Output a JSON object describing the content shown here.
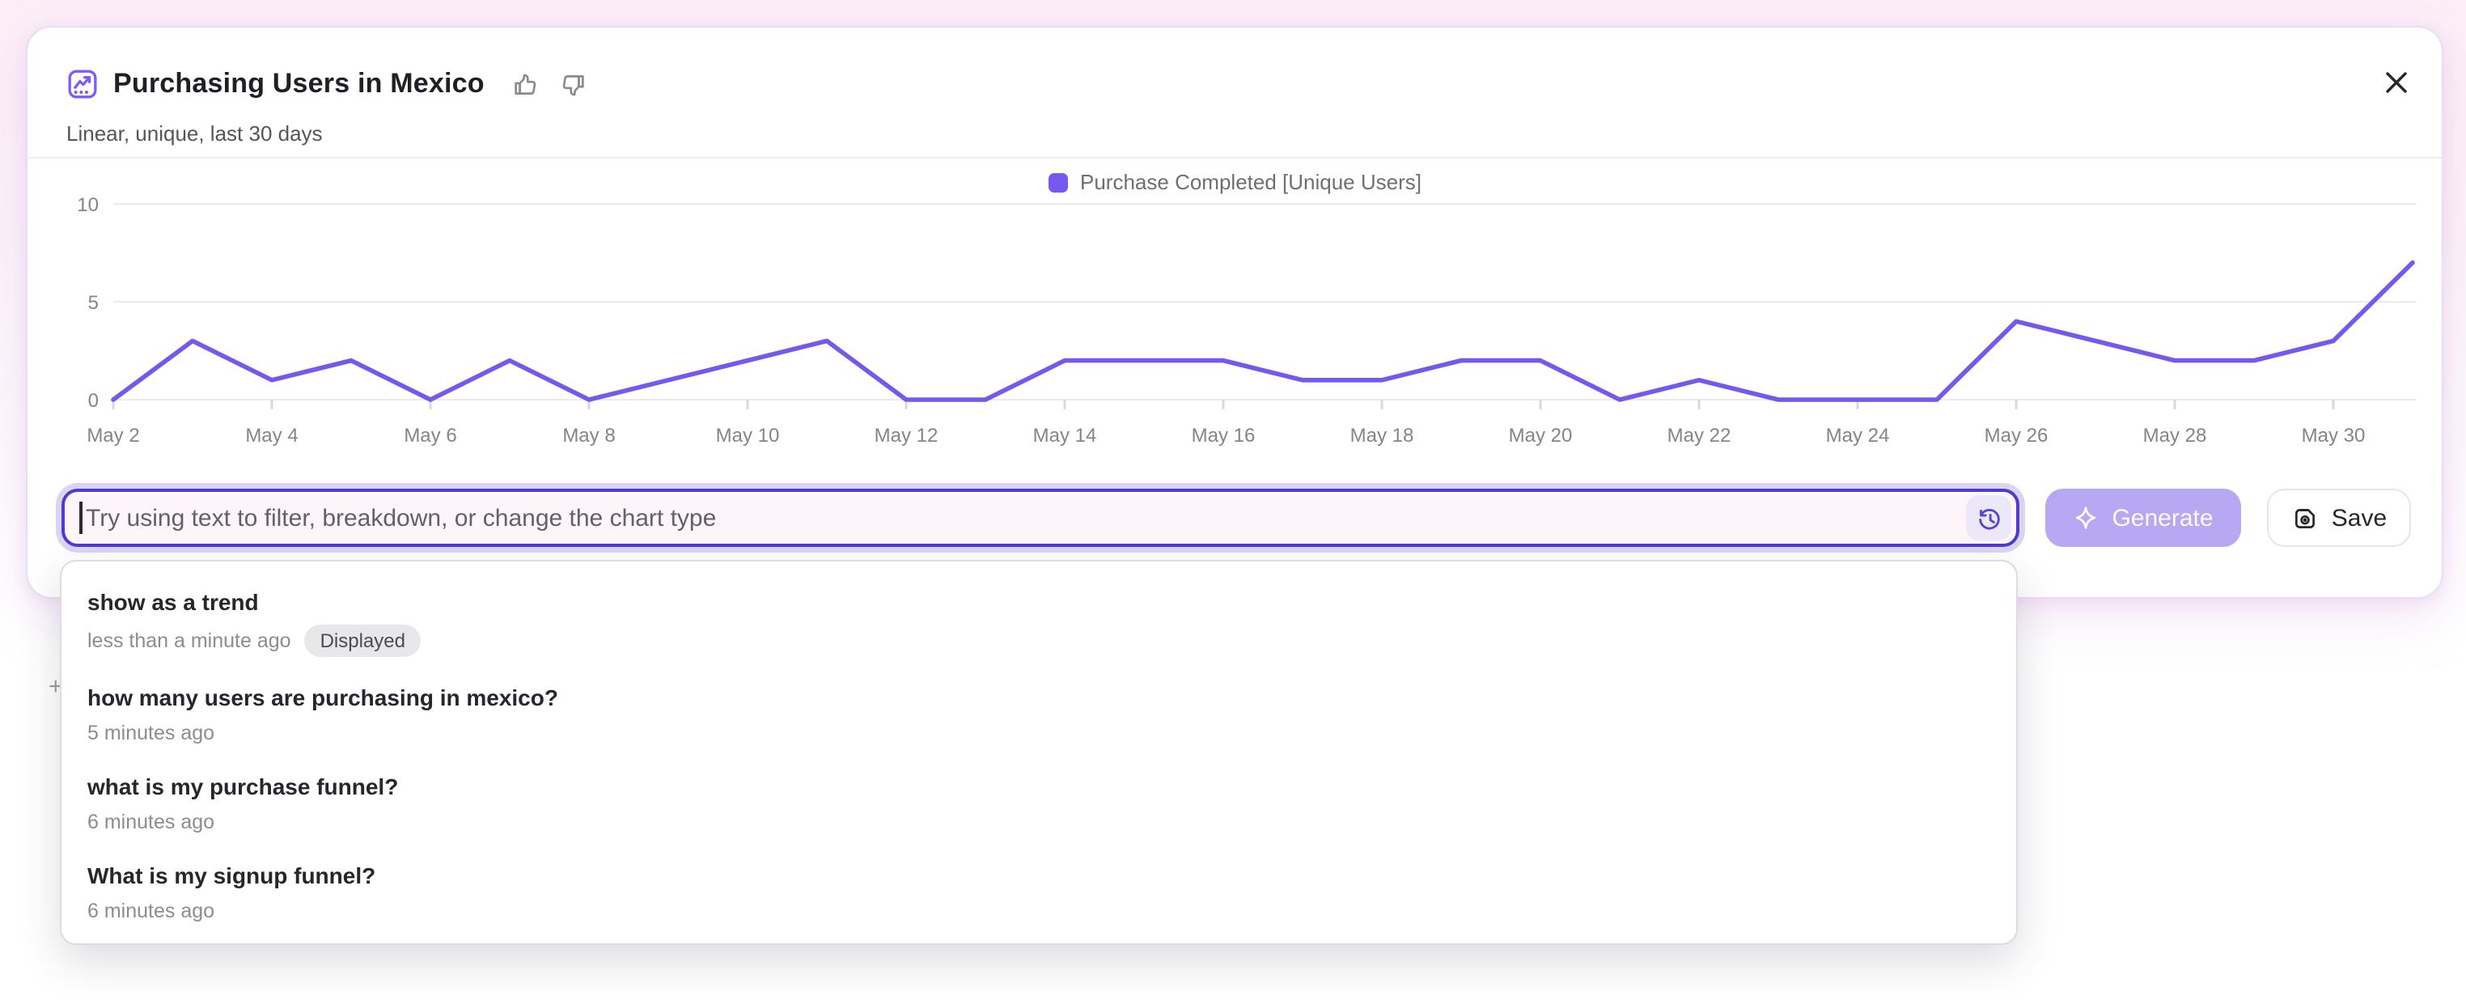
{
  "page": {
    "plus_artifact": "+"
  },
  "card": {
    "title": "Purchasing Users in Mexico",
    "subtitle": "Linear, unique, last 30 days"
  },
  "chart_data": {
    "type": "line",
    "title": "Purchasing Users in Mexico",
    "legend_position": "top-center",
    "grid": "horizontal",
    "ylim": [
      0,
      10
    ],
    "yticks": [
      0,
      5,
      10
    ],
    "x_tick_every": 2,
    "x": [
      "May 2",
      "May 3",
      "May 4",
      "May 5",
      "May 6",
      "May 7",
      "May 8",
      "May 9",
      "May 10",
      "May 11",
      "May 12",
      "May 13",
      "May 14",
      "May 15",
      "May 16",
      "May 17",
      "May 18",
      "May 19",
      "May 20",
      "May 21",
      "May 22",
      "May 23",
      "May 24",
      "May 25",
      "May 26",
      "May 27",
      "May 28",
      "May 29",
      "May 30",
      "May 31"
    ],
    "series": [
      {
        "name": "Purchase Completed [Unique Users]",
        "color": "#7558EE",
        "values": [
          0,
          3,
          1,
          2,
          0,
          2,
          0,
          1,
          2,
          3,
          0,
          0,
          2,
          2,
          2,
          1,
          1,
          2,
          2,
          0,
          1,
          0,
          0,
          0,
          4,
          3,
          2,
          2,
          3,
          7
        ]
      }
    ]
  },
  "composer": {
    "placeholder": "Try using text to filter, breakdown, or change the chart type",
    "generate_label": "Generate",
    "save_label": "Save"
  },
  "history_dropdown": {
    "items": [
      {
        "query": "show as a trend",
        "time": "less than a minute ago",
        "badge": "Displayed"
      },
      {
        "query": "how many users are purchasing in mexico?",
        "time": "5 minutes ago"
      },
      {
        "query": "what is my purchase funnel?",
        "time": "6 minutes ago"
      },
      {
        "query": "What is my signup funnel?",
        "time": "6 minutes ago"
      }
    ]
  },
  "colors": {
    "accent_purple": "#7558EE",
    "input_border": "#4B3BD4",
    "input_ring": "#DCD4F7",
    "input_bg": "#FDF5FA",
    "generate_bg": "#B6A8F2",
    "badge_bg": "#E8E8EA",
    "page_top_bg": "#FBEEF7"
  }
}
